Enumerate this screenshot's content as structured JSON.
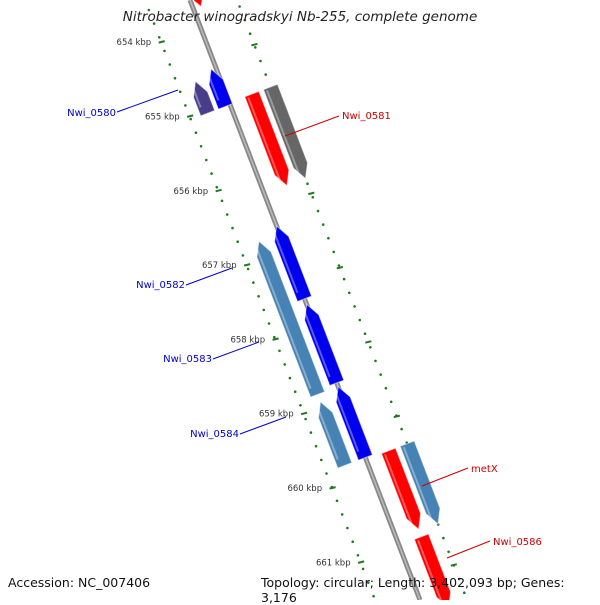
{
  "title": "Nitrobacter winogradskyi Nb-255, complete genome",
  "footer": {
    "accession": "Accession: NC_007406",
    "summary": "Topology: circular; Length: 3,402,093 bp; Genes: 3,176"
  },
  "colors": {
    "backbone": "#888888",
    "tick": "#1f7a1f",
    "label_plus": "#0000cc",
    "label_minus": "#cc0000",
    "gene_blue": "#0000ee",
    "gene_steel": "#4682b4",
    "gene_red": "#ff0000",
    "gene_gray": "#666666",
    "gene_slate": "#483d8b"
  },
  "ticks": [
    {
      "label": "654 kbp",
      "kbp": 654
    },
    {
      "label": "655 kbp",
      "kbp": 655
    },
    {
      "label": "656 kbp",
      "kbp": 656
    },
    {
      "label": "657 kbp",
      "kbp": 657
    },
    {
      "label": "658 kbp",
      "kbp": 658
    },
    {
      "label": "659 kbp",
      "kbp": 659
    },
    {
      "label": "660 kbp",
      "kbp": 660
    },
    {
      "label": "661 kbp",
      "kbp": 661
    }
  ],
  "genes": [
    {
      "name": "Nwi_0580",
      "label": "Nwi_0580",
      "color": "gene_blue",
      "strand": "+"
    },
    {
      "name": "Nwi_0581",
      "label": "Nwi_0581",
      "color": "gene_red",
      "strand": "-"
    },
    {
      "name": "Nwi_0582",
      "label": "Nwi_0582",
      "color": "gene_blue",
      "strand": "+"
    },
    {
      "name": "Nwi_0583",
      "label": "Nwi_0583",
      "color": "gene_blue",
      "strand": "+"
    },
    {
      "name": "Nwi_0584",
      "label": "Nwi_0584",
      "color": "gene_blue",
      "strand": "+"
    },
    {
      "name": "metX",
      "label": "metX",
      "color": "gene_red",
      "strand": "-"
    },
    {
      "name": "Nwi_0586",
      "label": "Nwi_0586",
      "color": "gene_red",
      "strand": "-"
    }
  ]
}
